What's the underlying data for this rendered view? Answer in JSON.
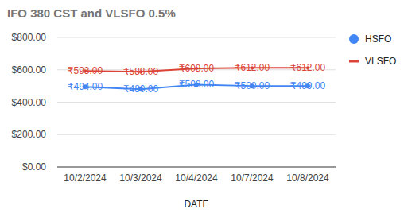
{
  "chart_data": {
    "type": "line",
    "title": "IFO 380 CST and VLSFO 0.5%",
    "x_label": "DATE",
    "categories": [
      "10/2/2024",
      "10/3/2024",
      "10/4/2024",
      "10/7/2024",
      "10/8/2024"
    ],
    "series": [
      {
        "name": "HSFO",
        "color": "#4285f4",
        "marker": "circle",
        "values": [
          494,
          480,
          508,
          500,
          499
        ],
        "value_labels": [
          "₹494.00",
          "₹480.00",
          "₹508.00",
          "₹500.00",
          "₹499.00"
        ]
      },
      {
        "name": "VLSFO",
        "color": "#db4437",
        "marker": "line",
        "values": [
          593,
          588,
          608,
          612,
          612
        ],
        "value_labels": [
          "₹593.00",
          "₹588.00",
          "₹608.00",
          "₹612.00",
          "₹612.00"
        ]
      }
    ],
    "ylim": [
      0,
      800
    ],
    "yticks": [
      {
        "value": 0,
        "label": "$0.00"
      },
      {
        "value": 200,
        "label": "$200.00"
      },
      {
        "value": 400,
        "label": "$400.00"
      },
      {
        "value": 600,
        "label": "$600.00"
      },
      {
        "value": 800,
        "label": "$800.00"
      }
    ],
    "grid": true,
    "legend": "right",
    "data_labels": true
  }
}
